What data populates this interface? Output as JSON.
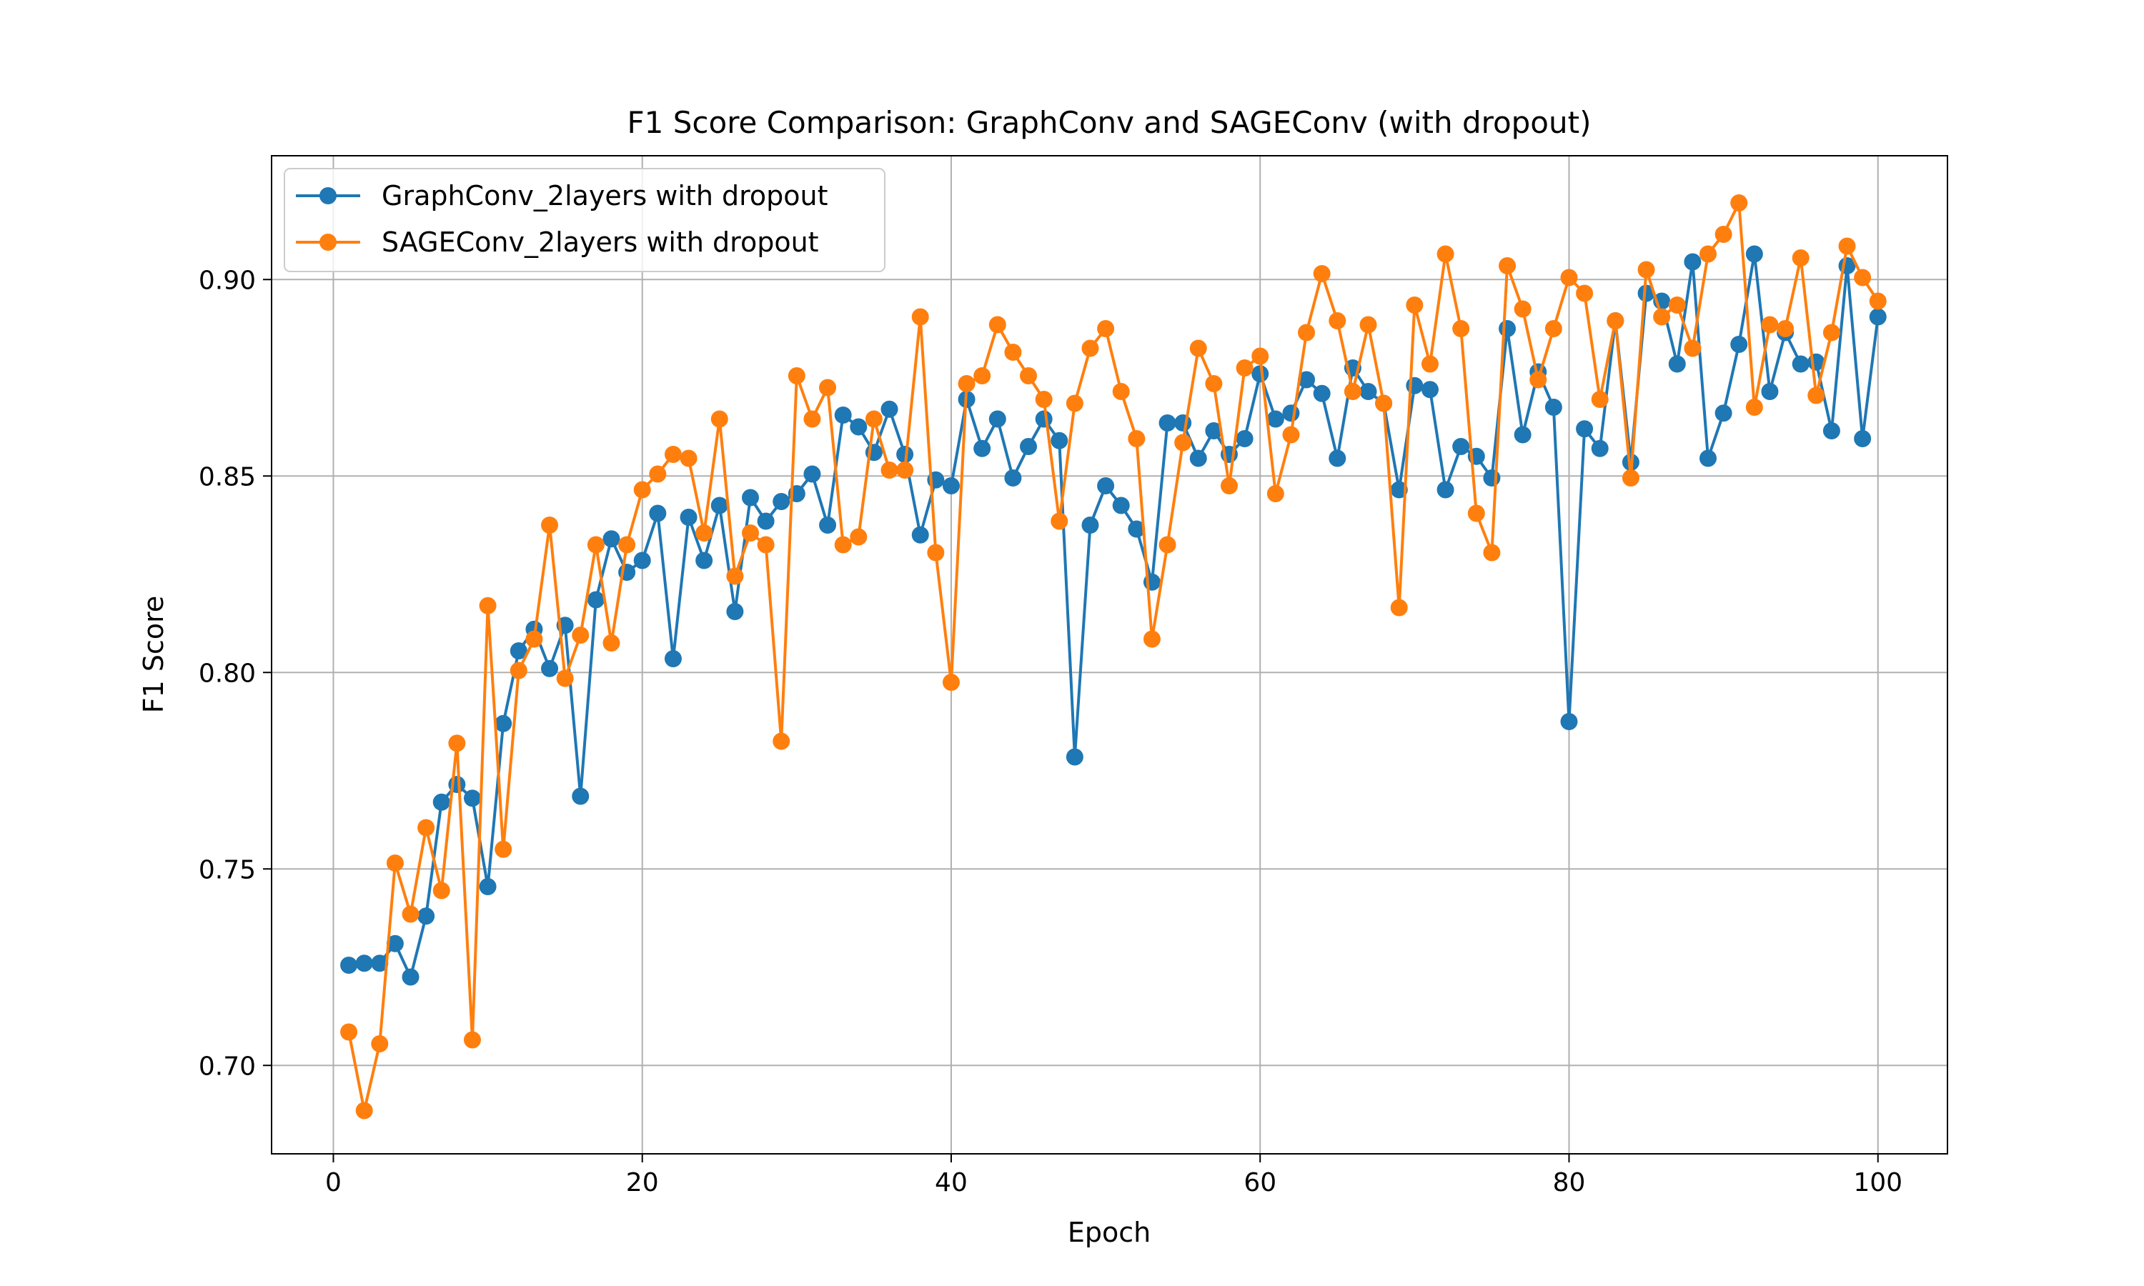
{
  "chart_data": {
    "type": "line",
    "title": "F1 Score Comparison: GraphConv and SAGEConv (with dropout)",
    "xlabel": "Epoch",
    "ylabel": "F1 Score",
    "xlim": [
      -4,
      104.5
    ],
    "ylim": [
      0.6775,
      0.9315
    ],
    "xticks": [
      0,
      20,
      40,
      60,
      80,
      100
    ],
    "yticks": [
      0.7,
      0.75,
      0.8,
      0.85,
      0.9
    ],
    "xtick_labels": [
      "0",
      "20",
      "40",
      "60",
      "80",
      "100"
    ],
    "ytick_labels": [
      "0.70",
      "0.75",
      "0.80",
      "0.85",
      "0.90"
    ],
    "grid": true,
    "legend_position": "top-left",
    "x": [
      1,
      2,
      3,
      4,
      5,
      6,
      7,
      8,
      9,
      10,
      11,
      12,
      13,
      14,
      15,
      16,
      17,
      18,
      19,
      20,
      21,
      22,
      23,
      24,
      25,
      26,
      27,
      28,
      29,
      30,
      31,
      32,
      33,
      34,
      35,
      36,
      37,
      38,
      39,
      40,
      41,
      42,
      43,
      44,
      45,
      46,
      47,
      48,
      49,
      50,
      51,
      52,
      53,
      54,
      55,
      56,
      57,
      58,
      59,
      60,
      61,
      62,
      63,
      64,
      65,
      66,
      67,
      68,
      69,
      70,
      71,
      72,
      73,
      74,
      75,
      76,
      77,
      78,
      79,
      80,
      81,
      82,
      83,
      84,
      85,
      86,
      87,
      88,
      89,
      90,
      91,
      92,
      93,
      94,
      95,
      96,
      97,
      98,
      99,
      100
    ],
    "series": [
      {
        "name": "GraphConv_2layers with dropout",
        "color": "#1f77b4",
        "values": [
          0.7255,
          0.726,
          0.726,
          0.731,
          0.7225,
          0.738,
          0.767,
          0.7715,
          0.768,
          0.7455,
          0.787,
          0.8055,
          0.811,
          0.801,
          0.812,
          0.7685,
          0.8185,
          0.834,
          0.8255,
          0.8285,
          0.8405,
          0.8035,
          0.8395,
          0.8285,
          0.8425,
          0.8155,
          0.8445,
          0.8385,
          0.8435,
          0.8455,
          0.8505,
          0.8375,
          0.8655,
          0.8625,
          0.856,
          0.867,
          0.8555,
          0.835,
          0.849,
          0.8475,
          0.8695,
          0.857,
          0.8645,
          0.8495,
          0.8575,
          0.8645,
          0.859,
          0.7785,
          0.8375,
          0.8475,
          0.8425,
          0.8365,
          0.823,
          0.8635,
          0.8635,
          0.8545,
          0.8615,
          0.8555,
          0.8595,
          0.876,
          0.8645,
          0.866,
          0.8745,
          0.871,
          0.8545,
          0.8775,
          0.8715,
          0.8685,
          0.8465,
          0.873,
          0.872,
          0.8465,
          0.8575,
          0.855,
          0.8495,
          0.8875,
          0.8605,
          0.8765,
          0.8675,
          0.7875,
          0.862,
          0.857,
          0.8895,
          0.8535,
          0.8965,
          0.8945,
          0.8785,
          0.9045,
          0.8545,
          0.866,
          0.8835,
          0.9065,
          0.8715,
          0.8865,
          0.8785,
          0.879,
          0.8615,
          0.9035,
          0.8595,
          0.8905
        ]
      },
      {
        "name": "SAGEConv_2layers with dropout",
        "color": "#ff7f0e",
        "values": [
          0.7085,
          0.6885,
          0.7055,
          0.7515,
          0.7385,
          0.7605,
          0.7445,
          0.782,
          0.7065,
          0.817,
          0.755,
          0.8005,
          0.8085,
          0.8375,
          0.7985,
          0.8095,
          0.8325,
          0.8075,
          0.8325,
          0.8465,
          0.8505,
          0.8555,
          0.8545,
          0.8355,
          0.8645,
          0.8245,
          0.8355,
          0.8325,
          0.7825,
          0.8755,
          0.8645,
          0.8725,
          0.8325,
          0.8345,
          0.8645,
          0.8515,
          0.8515,
          0.8905,
          0.8305,
          0.7975,
          0.8735,
          0.8755,
          0.8885,
          0.8815,
          0.8755,
          0.8695,
          0.8385,
          0.8685,
          0.8825,
          0.8875,
          0.8715,
          0.8595,
          0.8085,
          0.8325,
          0.8585,
          0.8825,
          0.8735,
          0.8475,
          0.8775,
          0.8805,
          0.8455,
          0.8605,
          0.8865,
          0.9015,
          0.8895,
          0.8715,
          0.8885,
          0.8685,
          0.8165,
          0.8935,
          0.8785,
          0.9065,
          0.8875,
          0.8405,
          0.8305,
          0.9035,
          0.8925,
          0.8745,
          0.8875,
          0.9005,
          0.8965,
          0.8695,
          0.8895,
          0.8495,
          0.9025,
          0.8905,
          0.8935,
          0.8825,
          0.9065,
          0.9115,
          0.9195,
          0.8675,
          0.8885,
          0.8875,
          0.9055,
          0.8705,
          0.8865,
          0.9085,
          0.9005,
          0.8945
        ]
      }
    ]
  }
}
